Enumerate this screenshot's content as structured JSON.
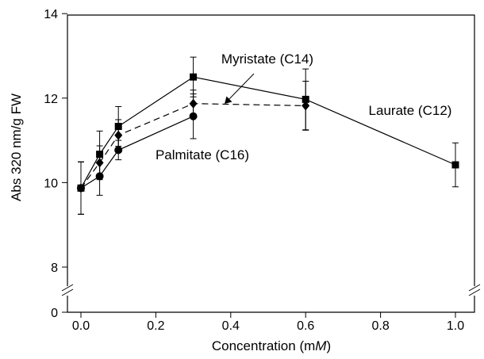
{
  "chart_data": {
    "type": "line",
    "xlabel": "Concentration (mM)",
    "xlabel_parts": [
      "Concentration (m",
      "M",
      ")"
    ],
    "ylabel": "Abs 320 nm/g FW",
    "xlim": [
      -0.03,
      1.05
    ],
    "xticks": [
      0.0,
      0.2,
      0.4,
      0.6,
      0.8,
      1.0
    ],
    "xtick_labels": [
      "0.0",
      "0.2",
      "0.4",
      "0.6",
      "0.8",
      "1.0"
    ],
    "yticks": [
      0,
      8,
      10,
      12,
      14
    ],
    "ytick_labels": [
      "0",
      "8",
      "10",
      "12",
      "14"
    ],
    "y_axis_break": [
      0,
      7.3
    ],
    "ylim": [
      7.3,
      14
    ],
    "grid": false,
    "series": [
      {
        "name": "Laurate (C12)",
        "marker": "square",
        "linestyle": "solid",
        "x": [
          0.0,
          0.05,
          0.1,
          0.3,
          0.6,
          1.0
        ],
        "y": [
          9.87,
          10.67,
          11.33,
          12.5,
          11.97,
          10.42
        ],
        "err": [
          0.62,
          0.55,
          0.47,
          0.47,
          0.72,
          0.52
        ]
      },
      {
        "name": "Myristate (C14)",
        "marker": "diamond",
        "linestyle": "dashed",
        "x": [
          0.0,
          0.05,
          0.1,
          0.3,
          0.6
        ],
        "y": [
          9.87,
          10.47,
          11.12,
          11.87,
          11.82
        ],
        "err": [
          0.62,
          0.4,
          0.37,
          0.32,
          0.58
        ]
      },
      {
        "name": "Palmitate (C16)",
        "marker": "circle",
        "linestyle": "solid",
        "x": [
          0.0,
          0.05,
          0.1,
          0.3
        ],
        "y": [
          9.87,
          10.15,
          10.77,
          11.57
        ],
        "err": [
          0.62,
          0.45,
          0.23,
          0.53
        ]
      }
    ],
    "annotations": [
      {
        "text": "Myristate (C14)",
        "has_arrow": true
      },
      {
        "text": "Laurate (C12)"
      },
      {
        "text": "Palmitate (C16)"
      }
    ]
  }
}
